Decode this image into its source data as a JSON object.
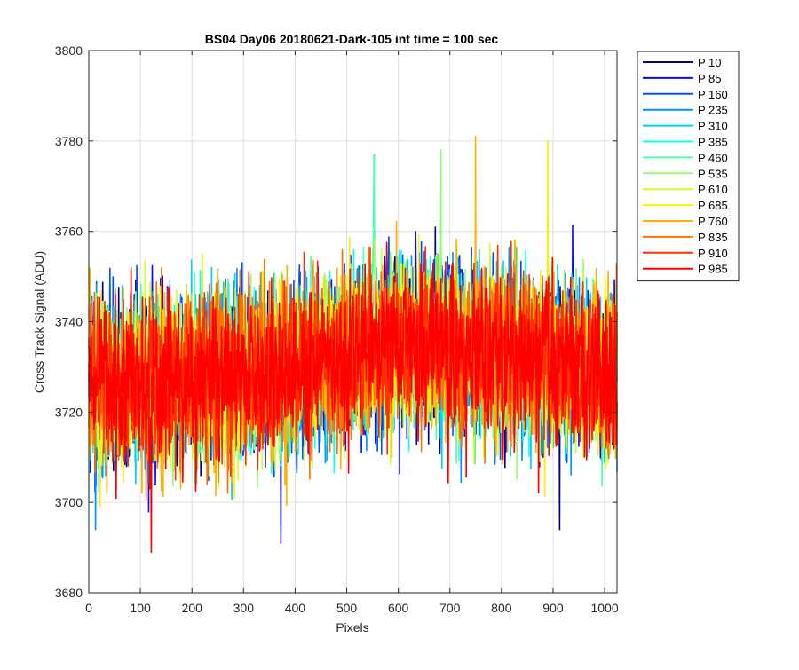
{
  "chart_data": {
    "type": "line",
    "title": "BS04 Day06 20180621-Dark-105 int time = 100 sec",
    "xlabel": "Pixels",
    "ylabel": "Cross Track Signal (ADU)",
    "xlim": [
      0,
      1024
    ],
    "ylim": [
      3680,
      3800
    ],
    "x_ticks": [
      0,
      100,
      200,
      300,
      400,
      500,
      600,
      700,
      800,
      900,
      1000
    ],
    "y_ticks": [
      3680,
      3700,
      3720,
      3740,
      3760,
      3780,
      3800
    ],
    "grid": true,
    "legend_position": "outside-right",
    "n_pixels": 1024,
    "trend": {
      "description": "noisy signal per pixel; mean rises from ~3726 at pixel 0 to ~3735 near pixel 600 then falls to ~3728 at pixel 1024; std ~ 9 ADU",
      "mean_at": [
        [
          0,
          3726
        ],
        [
          150,
          3727
        ],
        [
          300,
          3728
        ],
        [
          450,
          3731
        ],
        [
          600,
          3735
        ],
        [
          750,
          3734
        ],
        [
          900,
          3731
        ],
        [
          1024,
          3728
        ]
      ],
      "spread_std": 9
    },
    "series": [
      {
        "name": "P 10",
        "color": "#00008f"
      },
      {
        "name": "P 85",
        "color": "#0010ff"
      },
      {
        "name": "P 160",
        "color": "#0050ff"
      },
      {
        "name": "P 235",
        "color": "#0090ff"
      },
      {
        "name": "P 310",
        "color": "#00cfff"
      },
      {
        "name": "P 385",
        "color": "#10ffef"
      },
      {
        "name": "P 460",
        "color": "#50ffaf"
      },
      {
        "name": "P 535",
        "color": "#8fff70"
      },
      {
        "name": "P 610",
        "color": "#cfff30"
      },
      {
        "name": "P 685",
        "color": "#ffef00"
      },
      {
        "name": "P 760",
        "color": "#ffb000"
      },
      {
        "name": "P 835",
        "color": "#ff7000"
      },
      {
        "name": "P 910",
        "color": "#ff3000"
      },
      {
        "name": "P 985",
        "color": "#ff0000"
      }
    ],
    "notable_spikes": [
      {
        "series": "P 760",
        "x": 750,
        "y": 3781
      },
      {
        "series": "P 685",
        "x": 890,
        "y": 3780
      },
      {
        "series": "P 535",
        "x": 683,
        "y": 3778
      },
      {
        "series": "P 460",
        "x": 553,
        "y": 3777
      },
      {
        "series": "P 985",
        "x": 121,
        "y": 3689
      },
      {
        "series": "P 235",
        "x": 13,
        "y": 3694
      },
      {
        "series": "P 10",
        "x": 913,
        "y": 3694
      },
      {
        "series": "P 85",
        "x": 372,
        "y": 3691
      }
    ]
  }
}
